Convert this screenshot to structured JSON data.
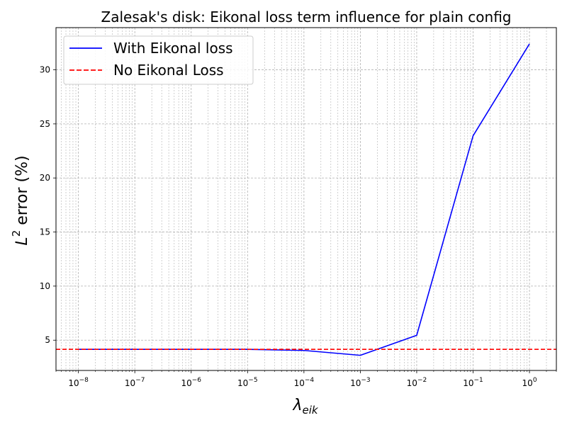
{
  "chart_data": {
    "type": "line",
    "title": "Zalesak's disk: Eikonal loss term influence for plain config",
    "xlabel": "λ_eik",
    "ylabel": "L² error (%)",
    "x_scale": "log",
    "xlim": [
      4e-09,
      3
    ],
    "ylim": [
      2.2,
      33.9
    ],
    "grid": true,
    "grid_minor": true,
    "legend_position": "upper-left",
    "y_ticks": [
      "5",
      "10",
      "15",
      "20",
      "25",
      "30"
    ],
    "x_ticks": [
      {
        "base": "10",
        "exp": "−8"
      },
      {
        "base": "10",
        "exp": "−7"
      },
      {
        "base": "10",
        "exp": "−6"
      },
      {
        "base": "10",
        "exp": "−5"
      },
      {
        "base": "10",
        "exp": "−4"
      },
      {
        "base": "10",
        "exp": "−3"
      },
      {
        "base": "10",
        "exp": "−2"
      },
      {
        "base": "10",
        "exp": "−1"
      },
      {
        "base": "10",
        "exp": "0"
      }
    ],
    "x_tick_values": [
      1e-08,
      1e-07,
      1e-06,
      1e-05,
      0.0001,
      0.001,
      0.01,
      0.1,
      1
    ],
    "y_tick_values": [
      5,
      10,
      15,
      20,
      25,
      30
    ],
    "series": [
      {
        "name": "With Eikonal loss",
        "color": "#0000ff",
        "style": "solid",
        "x": [
          1e-08,
          1e-07,
          1e-06,
          1e-05,
          0.0001,
          0.001,
          0.01,
          0.1,
          1
        ],
        "y": [
          4.15,
          4.15,
          4.15,
          4.15,
          4.05,
          3.6,
          5.45,
          23.9,
          32.4
        ]
      },
      {
        "name": "No Eikonal Loss",
        "color": "#ff0000",
        "style": "dashed",
        "hline": 4.15
      }
    ]
  }
}
